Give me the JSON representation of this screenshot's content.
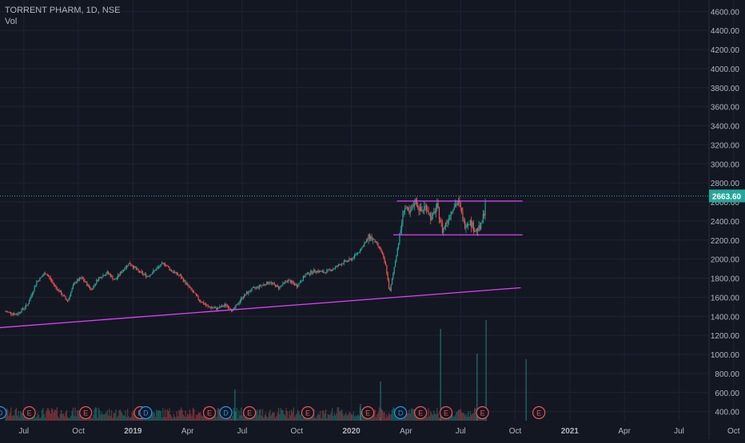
{
  "header": {
    "symbol": "TORRENT PHARM, 1D, NSE",
    "volume_label": "Vol"
  },
  "colors": {
    "background": "#131722",
    "grid": "#1f2330",
    "text": "#b2b5be",
    "up": "#26a69a",
    "down": "#ef5350",
    "trendline": "#e040fb",
    "price_line": "#26a69a",
    "earnings": "#ef5350",
    "dividend": "#2196f3"
  },
  "chart_data": {
    "type": "candlestick",
    "title": "TORRENT PHARM, 1D, NSE",
    "interval": "1D",
    "exchange": "NSE",
    "y_axis": {
      "side": "right",
      "ticks": [
        "4600.00",
        "4400.00",
        "4200.00",
        "4000.00",
        "3800.00",
        "3600.00",
        "3400.00",
        "3200.00",
        "3000.00",
        "2800.00",
        "2600.00",
        "2400.00",
        "2200.00",
        "2000.00",
        "1800.00",
        "1600.00",
        "1400.00",
        "1200.00",
        "1000.00",
        "800.00",
        "600.00",
        "400.00"
      ],
      "ylim": [
        330,
        4720
      ]
    },
    "x_axis": {
      "ticks": [
        "Jul",
        "Oct",
        "2019",
        "Apr",
        "Jul",
        "Oct",
        "2020",
        "Apr",
        "Jul",
        "Oct",
        "2021",
        "Apr",
        "Jul",
        "Oct"
      ],
      "bold_ticks": [
        "2019",
        "2020",
        "2021"
      ],
      "start_month": "2018-06"
    },
    "last_price": {
      "value": 2663.6,
      "label": "2663.60"
    },
    "price_path": [
      [
        0.0,
        1450
      ],
      [
        0.6,
        1420
      ],
      [
        1.2,
        1520
      ],
      [
        1.7,
        1760
      ],
      [
        2.2,
        1860
      ],
      [
        2.7,
        1720
      ],
      [
        3.0,
        1650
      ],
      [
        3.4,
        1560
      ],
      [
        3.8,
        1760
      ],
      [
        4.2,
        1800
      ],
      [
        4.7,
        1680
      ],
      [
        5.1,
        1800
      ],
      [
        5.6,
        1860
      ],
      [
        6.0,
        1780
      ],
      [
        6.5,
        1900
      ],
      [
        6.8,
        1960
      ],
      [
        7.3,
        1870
      ],
      [
        7.8,
        1820
      ],
      [
        8.3,
        1900
      ],
      [
        8.7,
        1960
      ],
      [
        9.1,
        1880
      ],
      [
        9.6,
        1820
      ],
      [
        10.1,
        1700
      ],
      [
        10.6,
        1580
      ],
      [
        11.1,
        1500
      ],
      [
        11.6,
        1480
      ],
      [
        12.1,
        1520
      ],
      [
        12.5,
        1460
      ],
      [
        13.0,
        1600
      ],
      [
        13.5,
        1680
      ],
      [
        14.0,
        1720
      ],
      [
        14.5,
        1760
      ],
      [
        15.0,
        1700
      ],
      [
        15.5,
        1780
      ],
      [
        16.0,
        1720
      ],
      [
        16.5,
        1840
      ],
      [
        17.0,
        1880
      ],
      [
        17.5,
        1860
      ],
      [
        18.0,
        1900
      ],
      [
        18.5,
        1960
      ],
      [
        19.0,
        2000
      ],
      [
        19.4,
        2080
      ],
      [
        19.7,
        2160
      ],
      [
        20.0,
        2240
      ],
      [
        20.3,
        2180
      ],
      [
        20.6,
        2100
      ],
      [
        20.9,
        1920
      ],
      [
        21.1,
        1640
      ],
      [
        21.3,
        1860
      ],
      [
        21.5,
        2080
      ],
      [
        21.7,
        2300
      ],
      [
        21.9,
        2560
      ],
      [
        22.2,
        2460
      ],
      [
        22.5,
        2620
      ],
      [
        22.8,
        2500
      ],
      [
        23.1,
        2560
      ],
      [
        23.4,
        2420
      ],
      [
        23.7,
        2560
      ],
      [
        24.0,
        2300
      ],
      [
        24.3,
        2420
      ],
      [
        24.6,
        2560
      ],
      [
        24.9,
        2600
      ],
      [
        25.2,
        2360
      ],
      [
        25.5,
        2400
      ],
      [
        25.8,
        2300
      ],
      [
        26.1,
        2330
      ],
      [
        26.3,
        2500
      ],
      [
        26.4,
        2700
      ]
    ],
    "volume_spikes": [
      [
        12.6,
        0.28
      ],
      [
        19.5,
        0.15
      ],
      [
        20.6,
        0.35
      ],
      [
        23.9,
        0.82
      ],
      [
        25.9,
        0.6
      ],
      [
        26.4,
        0.9
      ],
      [
        28.6,
        0.55
      ]
    ],
    "trendlines": [
      {
        "name": "rising-support",
        "from": [
          -0.4,
          1280
        ],
        "to": [
          28.3,
          1700
        ]
      },
      {
        "name": "range-top",
        "from": [
          21.5,
          2610
        ],
        "to": [
          28.4,
          2610
        ]
      },
      {
        "name": "range-bottom",
        "from": [
          21.3,
          2255
        ],
        "to": [
          28.4,
          2255
        ]
      }
    ],
    "events": [
      {
        "type": "dividend",
        "letter": "D",
        "x": -0.3
      },
      {
        "type": "earnings",
        "letter": "E",
        "x": 1.3
      },
      {
        "type": "earnings",
        "letter": "E",
        "x": 4.4
      },
      {
        "type": "earnings",
        "letter": "E",
        "x": 7.4
      },
      {
        "type": "dividend",
        "letter": "D",
        "x": 7.7
      },
      {
        "type": "earnings",
        "letter": "E",
        "x": 11.2
      },
      {
        "type": "dividend",
        "letter": "D",
        "x": 12.1
      },
      {
        "type": "earnings",
        "letter": "E",
        "x": 13.4
      },
      {
        "type": "earnings",
        "letter": "E",
        "x": 16.6
      },
      {
        "type": "earnings",
        "letter": "E",
        "x": 19.9
      },
      {
        "type": "dividend",
        "letter": "D",
        "x": 21.7
      },
      {
        "type": "earnings",
        "letter": "E",
        "x": 22.8
      },
      {
        "type": "earnings",
        "letter": "E",
        "x": 24.2
      },
      {
        "type": "earnings",
        "letter": "E",
        "x": 26.2
      },
      {
        "type": "earnings",
        "letter": "E",
        "x": 29.3
      }
    ]
  }
}
